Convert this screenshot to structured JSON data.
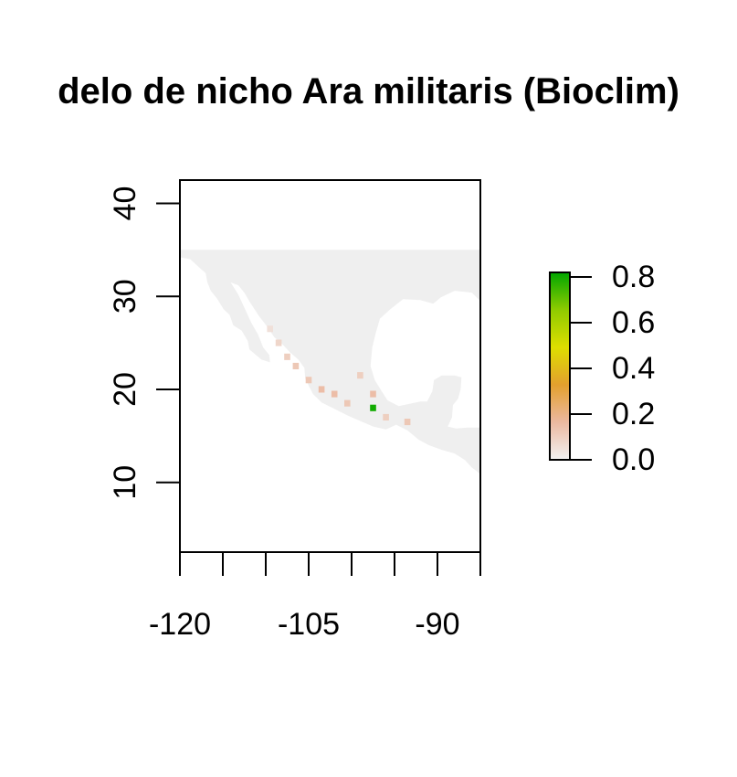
{
  "chart_data": {
    "type": "heatmap",
    "title": "delo de nicho Ara militaris (Bioclim)",
    "xlabel": "",
    "ylabel": "",
    "xlim": [
      -120,
      -85
    ],
    "ylim": [
      2.5,
      42.5
    ],
    "x_ticks": [
      -120,
      -115,
      -110,
      -105,
      -100,
      -95,
      -90,
      -85
    ],
    "x_tick_labels": [
      "-120",
      "-105",
      "-90"
    ],
    "x_tick_label_values": [
      -120,
      -105,
      -90
    ],
    "y_ticks": [
      10,
      20,
      30,
      40
    ],
    "y_tick_labels": [
      "10",
      "20",
      "30",
      "40"
    ],
    "raster_extent": {
      "lon": [
        -120,
        -85
      ],
      "lat": [
        10,
        35
      ]
    },
    "background_color": "#efefef",
    "legend": {
      "placement": "right",
      "range": [
        0.0,
        0.82
      ],
      "ticks": [
        0.0,
        0.2,
        0.4,
        0.6,
        0.8
      ],
      "tick_labels": [
        "0.0",
        "0.2",
        "0.4",
        "0.6",
        "0.8"
      ],
      "colors": [
        "#f2f2f2",
        "#ebb8a0",
        "#e3a02e",
        "#dede00",
        "#8fcb00",
        "#00a600"
      ]
    },
    "suitability_cells": [
      {
        "lon": -109.5,
        "lat": 26.5,
        "value": 0.05
      },
      {
        "lon": -108.5,
        "lat": 25.0,
        "value": 0.08
      },
      {
        "lon": -107.5,
        "lat": 23.5,
        "value": 0.1
      },
      {
        "lon": -106.5,
        "lat": 22.5,
        "value": 0.12
      },
      {
        "lon": -105.0,
        "lat": 21.0,
        "value": 0.12
      },
      {
        "lon": -103.5,
        "lat": 20.0,
        "value": 0.15
      },
      {
        "lon": -102.0,
        "lat": 19.5,
        "value": 0.15
      },
      {
        "lon": -100.5,
        "lat": 18.5,
        "value": 0.12
      },
      {
        "lon": -99.0,
        "lat": 21.5,
        "value": 0.1
      },
      {
        "lon": -97.5,
        "lat": 19.5,
        "value": 0.15
      },
      {
        "lon": -97.5,
        "lat": 18.0,
        "value": 0.8
      },
      {
        "lon": -96.0,
        "lat": 17.0,
        "value": 0.1
      },
      {
        "lon": -93.5,
        "lat": 16.5,
        "value": 0.12
      }
    ]
  }
}
